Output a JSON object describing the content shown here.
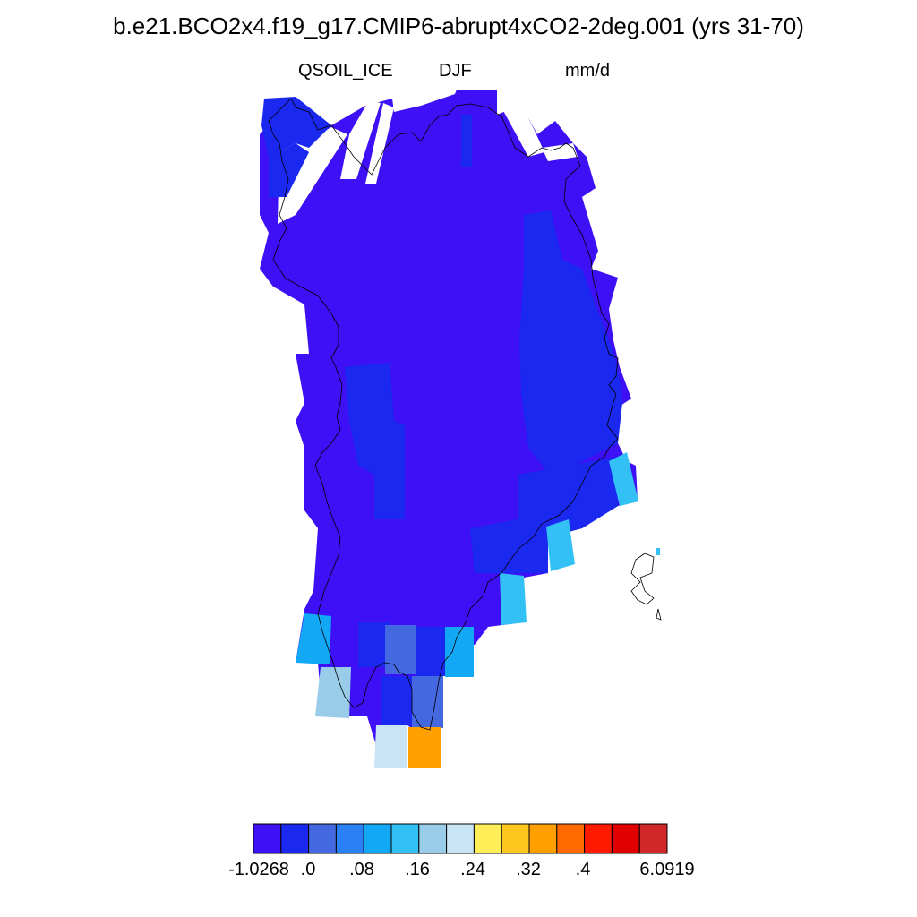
{
  "title": "b.e21.BCO2x4.f19_g17.CMIP6-abrupt4xCO2-2deg.001 (yrs 31-70)",
  "subtitle": {
    "variable": "QSOIL_ICE",
    "season": "DJF",
    "units": "mm/d"
  },
  "colorbar": {
    "colors": [
      "#3d10f5",
      "#1a28f0",
      "#4468e0",
      "#2a80f5",
      "#12a8f5",
      "#32c0f5",
      "#98cce8",
      "#c8e4f5",
      "#ffee58",
      "#ffc820",
      "#ffa000",
      "#ff6a00",
      "#ff1a00",
      "#e00000",
      "#d02828"
    ],
    "labels": [
      "-1.0268",
      ".0",
      ".08",
      ".16",
      ".24",
      ".32",
      ".4",
      "6.0919"
    ]
  },
  "map_cells": [
    {
      "color": "#3d10f5"
    },
    {
      "color": "#1a28f0"
    },
    {
      "color": "#4468e0"
    },
    {
      "color": "#12a8f5"
    },
    {
      "color": "#32c0f5"
    },
    {
      "color": "#98cce8"
    },
    {
      "color": "#c8e4f5"
    },
    {
      "color": "#ffa000"
    }
  ]
}
